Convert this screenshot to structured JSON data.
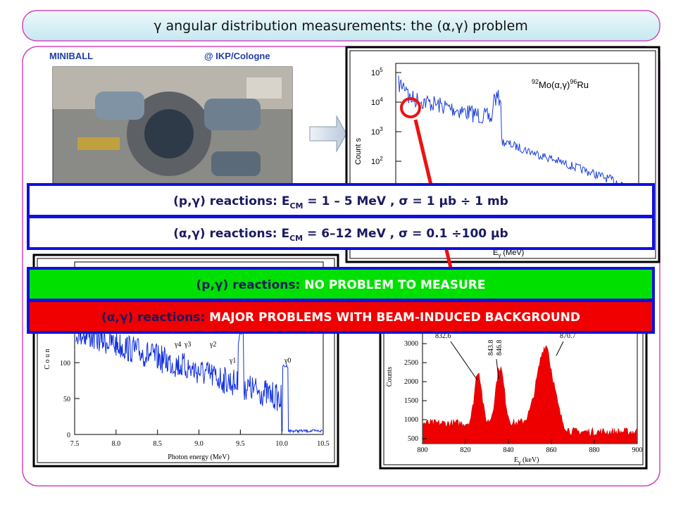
{
  "header": {
    "title": "γ angular distribution measurements: the (α,γ) problem"
  },
  "photo": {
    "label_left": "MINIBALL",
    "label_right": "@ IKP/Cologne"
  },
  "plot_top": {
    "reaction_pre": "92",
    "reaction_mid": "Mo(α,γ)",
    "reaction_post": "96",
    "reaction_end": "Ru",
    "ylabel": "Count s",
    "xlabel": "E",
    "xlabel_sub": "γ",
    "xlabel_unit": " (MeV)",
    "yticks": [
      {
        "base": "10",
        "exponent": "5"
      },
      {
        "base": "10",
        "exponent": "4"
      },
      {
        "base": "10",
        "exponent": "3"
      },
      {
        "base": "10",
        "exponent": "2"
      }
    ]
  },
  "plot_left": {
    "xticks": [
      "7.5",
      "8.0",
      "8.5",
      "9.0",
      "9.5",
      "10.0",
      "10.5"
    ],
    "yticks": [
      "0",
      "50",
      "100"
    ],
    "xlabel": "Photon energy  (MeV)",
    "ylabel": "C o u n",
    "peaks": [
      "γ4",
      "γ3",
      "γ2",
      "γ1",
      "γ0"
    ]
  },
  "plot_right": {
    "xticks": [
      "800",
      "820",
      "840",
      "860",
      "880",
      "900"
    ],
    "yticks": [
      "500",
      "1000",
      "1500",
      "2000",
      "2500",
      "3000"
    ],
    "ylabel": "Counts",
    "xlabel": "E",
    "xlabel_sub": "γ",
    "xlabel_unit": " (keV)",
    "peaks": [
      "832.6",
      "843.8",
      "846.8",
      "870.7"
    ]
  },
  "notes": [
    {
      "prefix": "(p,γ) reactions: E",
      "sub": "CM",
      "rest": " = 1 – 5  MeV , σ = 1 µb ÷ 1 mb"
    },
    {
      "prefix": "(α,γ) reactions: E",
      "sub": "CM",
      "rest": " = 6–12  MeV , σ = 0.1 ÷100 µb"
    }
  ],
  "status": [
    {
      "prefix": "(p,γ) reactions: ",
      "highlight": "NO PROBLEM TO MEASURE"
    },
    {
      "prefix": "(α,γ) reactions: ",
      "highlight": "MAJOR PROBLEMS WITH BEAM-INDUCED BACKGROUND"
    }
  ]
}
